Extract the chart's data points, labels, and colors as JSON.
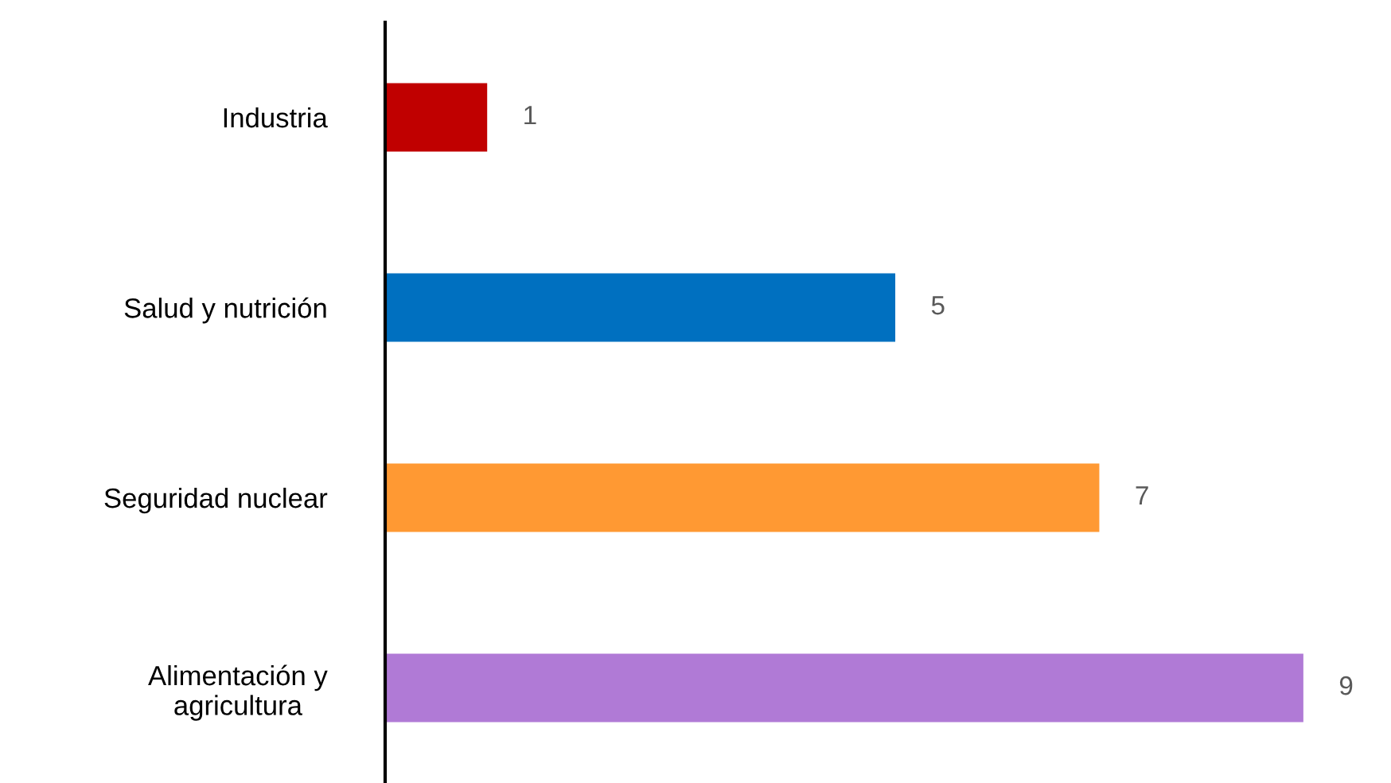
{
  "chart_data": {
    "type": "bar",
    "orientation": "horizontal",
    "categories": [
      "Industria",
      "Salud y nutrición",
      "Seguridad nuclear",
      "Alimentación y\nagricultura"
    ],
    "values": [
      1,
      5,
      7,
      9
    ],
    "colors": [
      "#c00000",
      "#0070c0",
      "#ff9933",
      "#b07ad6"
    ],
    "data_labels": true
  }
}
